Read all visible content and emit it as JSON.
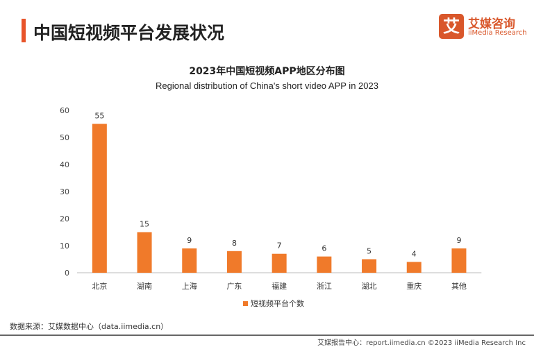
{
  "header": {
    "title": "中国短视频平台发展状况"
  },
  "logo": {
    "mark": "艾",
    "name_cn": "艾媒咨询",
    "name_en": "iiMedia Research"
  },
  "chart_data": {
    "type": "bar",
    "title": "2023年中国短视频APP地区分布图",
    "subtitle": "Regional distribution of China's short video APP in 2023",
    "categories": [
      "北京",
      "湖南",
      "上海",
      "广东",
      "福建",
      "浙江",
      "湖北",
      "重庆",
      "其他"
    ],
    "series": [
      {
        "name": "短视频平台个数",
        "values": [
          55,
          15,
          9,
          8,
          7,
          6,
          5,
          4,
          9
        ],
        "color": "#f07a2a"
      }
    ],
    "ylim": [
      0,
      60
    ],
    "yticks": [
      0,
      10,
      20,
      30,
      40,
      50,
      60
    ],
    "grid": false,
    "legend": "bottom",
    "data_labels": true
  },
  "source": "数据来源：艾媒数据中心（data.iimedia.cn）",
  "footer": "艾媒报告中心：report.iimedia.cn ©2023 iiMedia Research Inc"
}
